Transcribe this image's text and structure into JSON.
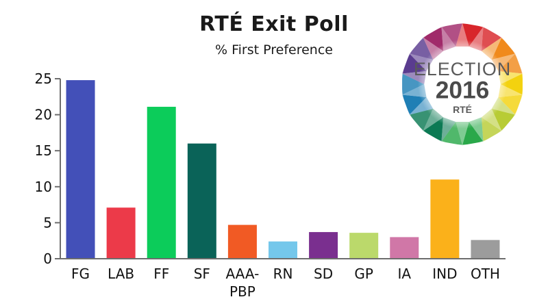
{
  "chart_data": {
    "type": "bar",
    "title": "RTÉ Exit Poll",
    "subtitle": "% First Preference",
    "categories": [
      "FG",
      "LAB",
      "FF",
      "SF",
      "AAA-PBP",
      "RN",
      "SD",
      "GP",
      "IA",
      "IND",
      "OTH"
    ],
    "category_lines": [
      [
        "FG"
      ],
      [
        "LAB"
      ],
      [
        "FF"
      ],
      [
        "SF"
      ],
      [
        "AAA-",
        "PBP"
      ],
      [
        "RN"
      ],
      [
        "SD"
      ],
      [
        "GP"
      ],
      [
        "IA"
      ],
      [
        "IND"
      ],
      [
        "OTH"
      ]
    ],
    "values": [
      24.8,
      7.1,
      21.1,
      16.0,
      4.7,
      2.4,
      3.7,
      3.6,
      3.0,
      11.0,
      2.6
    ],
    "colors": [
      "#4350b8",
      "#ec3a49",
      "#0ccc5a",
      "#0a6358",
      "#f15a24",
      "#74c7eb",
      "#7a2f8f",
      "#bbd96b",
      "#d077a7",
      "#fbb11a",
      "#9c9c9c"
    ],
    "ylim": [
      0,
      25
    ],
    "yticks": [
      0,
      5,
      10,
      15,
      20,
      25
    ],
    "xlabel": "",
    "ylabel": "",
    "grid": false
  },
  "logo": {
    "line1": "ELECTION",
    "line2": "2016",
    "brand": "RTÉ",
    "palette": [
      "#d8262b",
      "#f08a1c",
      "#f3d20f",
      "#b8cc35",
      "#2aa84a",
      "#0c7a54",
      "#1f7fb5",
      "#5a3c8f",
      "#a02a6a"
    ]
  }
}
